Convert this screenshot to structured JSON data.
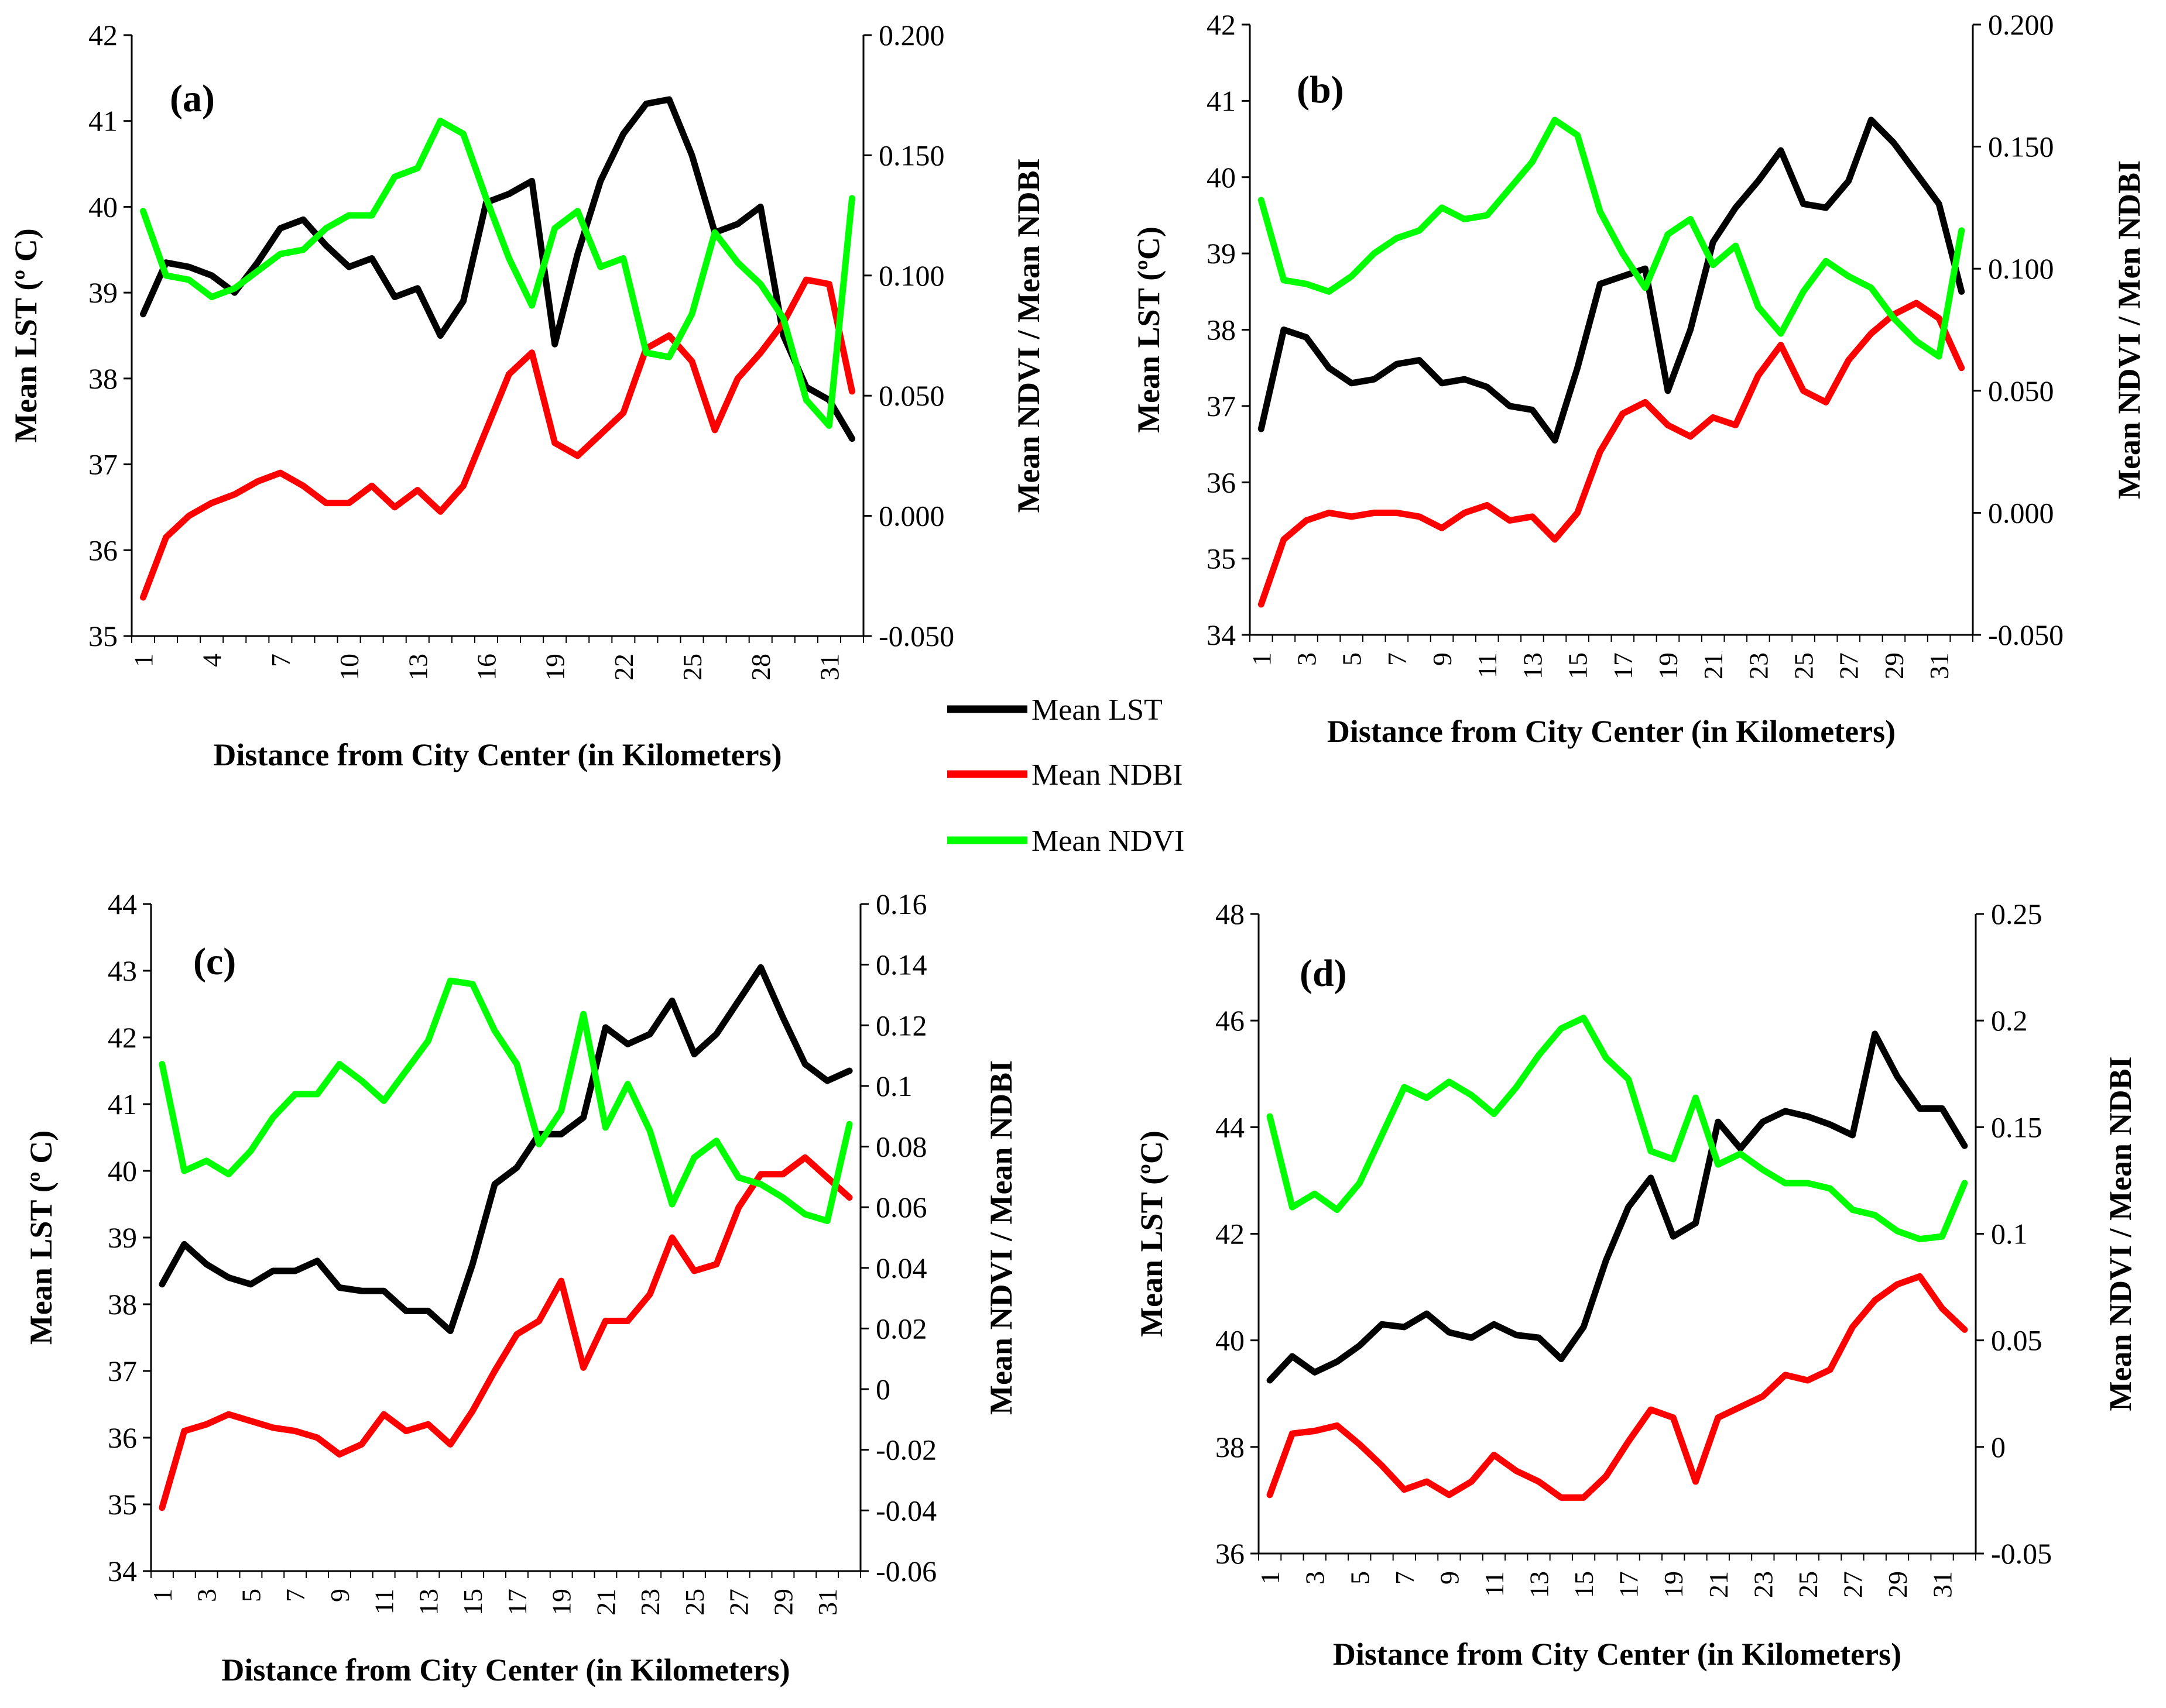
{
  "legend": [
    {
      "key": "lst",
      "label": "Mean LST",
      "color": "#000000"
    },
    {
      "key": "ndbi",
      "label": "Mean NDBI",
      "color": "#ff0000"
    },
    {
      "key": "ndvi",
      "label": "Mean NDVI",
      "color": "#00ff00"
    }
  ],
  "chart_data": [
    {
      "type": "line",
      "panel": "(a)",
      "xlabel": "Distance from City Center (in Kilometers)",
      "ylabel_left": "Mean LST (º C)",
      "ylabel_right": "Mean NDVI / Mean NDBI",
      "x": [
        1,
        2,
        3,
        4,
        5,
        6,
        7,
        8,
        9,
        10,
        11,
        12,
        13,
        14,
        15,
        16,
        17,
        18,
        19,
        20,
        21,
        22,
        23,
        24,
        25,
        26,
        27,
        28,
        29,
        30,
        31,
        32
      ],
      "x_tick_labels": [
        "1",
        "4",
        "7",
        "10",
        "13",
        "16",
        "19",
        "22",
        "25",
        "28",
        "31"
      ],
      "ylim_left": [
        35,
        42
      ],
      "yticks_left": [
        "35",
        "36",
        "37",
        "38",
        "39",
        "40",
        "41",
        "42"
      ],
      "ylim_right": [
        -0.05,
        0.2
      ],
      "yticks_right": [
        "-0.050",
        "0.000",
        "0.050",
        "0.100",
        "0.150",
        "0.200"
      ],
      "series": [
        {
          "name": "Mean LST",
          "axis": "left",
          "values": [
            38.75,
            39.35,
            39.3,
            39.2,
            39.0,
            39.35,
            39.75,
            39.85,
            39.55,
            39.3,
            39.4,
            38.95,
            39.05,
            38.5,
            38.9,
            40.05,
            40.15,
            40.3,
            38.4,
            39.45,
            40.3,
            40.85,
            41.2,
            41.25,
            40.6,
            39.7,
            39.8,
            40.0,
            38.5,
            37.9,
            37.75,
            37.3
          ]
        },
        {
          "name": "Mean NDBI",
          "axis": "left",
          "values": [
            35.45,
            36.15,
            36.4,
            36.55,
            36.65,
            36.8,
            36.9,
            36.75,
            36.55,
            36.55,
            36.75,
            36.5,
            36.7,
            36.45,
            36.75,
            37.4,
            38.05,
            38.3,
            37.25,
            37.1,
            37.35,
            37.6,
            38.35,
            38.5,
            38.2,
            37.4,
            38.0,
            38.3,
            38.65,
            39.15,
            39.1,
            37.85
          ]
        },
        {
          "name": "Mean NDVI",
          "axis": "left",
          "values": [
            39.95,
            39.2,
            39.15,
            38.95,
            39.05,
            39.25,
            39.45,
            39.5,
            39.75,
            39.9,
            39.9,
            40.35,
            40.45,
            41.0,
            40.85,
            40.1,
            39.4,
            38.85,
            39.75,
            39.95,
            39.3,
            39.4,
            38.3,
            38.25,
            38.75,
            39.7,
            39.35,
            39.1,
            38.7,
            37.75,
            37.45,
            40.1
          ]
        }
      ]
    },
    {
      "type": "line",
      "panel": "(b)",
      "xlabel": "Distance from City Center (in Kilometers)",
      "ylabel_left": "Mean LST (ºC)",
      "ylabel_right": "Mean NDVI / Men NDBI",
      "x": [
        1,
        2,
        3,
        4,
        5,
        6,
        7,
        8,
        9,
        10,
        11,
        12,
        13,
        14,
        15,
        16,
        17,
        18,
        19,
        20,
        21,
        22,
        23,
        24,
        25,
        26,
        27,
        28,
        29,
        30,
        31,
        32
      ],
      "x_tick_labels": [
        "1",
        "3",
        "5",
        "7",
        "9",
        "11",
        "13",
        "15",
        "17",
        "19",
        "21",
        "23",
        "25",
        "27",
        "29",
        "31"
      ],
      "ylim_left": [
        34,
        42
      ],
      "yticks_left": [
        "34",
        "35",
        "36",
        "37",
        "38",
        "39",
        "40",
        "41",
        "42"
      ],
      "ylim_right": [
        -0.05,
        0.2
      ],
      "yticks_right": [
        "-0.050",
        "0.000",
        "0.050",
        "0.100",
        "0.150",
        "0.200"
      ],
      "series": [
        {
          "name": "Mean LST",
          "axis": "left",
          "values": [
            36.7,
            38.0,
            37.9,
            37.5,
            37.3,
            37.35,
            37.55,
            37.6,
            37.3,
            37.35,
            37.25,
            37.0,
            36.95,
            36.55,
            37.5,
            38.6,
            38.7,
            38.8,
            37.2,
            38.0,
            39.15,
            39.6,
            39.95,
            40.35,
            39.65,
            39.6,
            39.95,
            40.75,
            40.45,
            40.05,
            39.65,
            38.5
          ]
        },
        {
          "name": "Mean NDBI",
          "axis": "left",
          "values": [
            34.4,
            35.25,
            35.5,
            35.6,
            35.55,
            35.6,
            35.6,
            35.55,
            35.4,
            35.6,
            35.7,
            35.5,
            35.55,
            35.25,
            35.6,
            36.4,
            36.9,
            37.05,
            36.75,
            36.6,
            36.85,
            36.75,
            37.4,
            37.8,
            37.2,
            37.05,
            37.6,
            37.95,
            38.2,
            38.35,
            38.15,
            37.5
          ]
        },
        {
          "name": "Mean NDVI",
          "axis": "left",
          "values": [
            39.7,
            38.65,
            38.6,
            38.5,
            38.7,
            39.0,
            39.2,
            39.3,
            39.6,
            39.45,
            39.5,
            39.85,
            40.2,
            40.75,
            40.55,
            39.55,
            39.0,
            38.55,
            39.25,
            39.45,
            38.85,
            39.1,
            38.3,
            37.95,
            38.5,
            38.9,
            38.7,
            38.55,
            38.15,
            37.85,
            37.65,
            39.3
          ]
        }
      ]
    },
    {
      "type": "line",
      "panel": "(c)",
      "xlabel": "Distance from City Center (in Kilometers)",
      "ylabel_left": "Mean LST (º C)",
      "ylabel_right": "Mean NDVI / Mean NDBI",
      "x": [
        1,
        2,
        3,
        4,
        5,
        6,
        7,
        8,
        9,
        10,
        11,
        12,
        13,
        14,
        15,
        16,
        17,
        18,
        19,
        20,
        21,
        22,
        23,
        24,
        25,
        26,
        27,
        28,
        29,
        30,
        31,
        32
      ],
      "x_tick_labels": [
        "1",
        "3",
        "5",
        "7",
        "9",
        "11",
        "13",
        "15",
        "17",
        "19",
        "21",
        "23",
        "25",
        "27",
        "29",
        "31"
      ],
      "ylim_left": [
        34,
        44
      ],
      "yticks_left": [
        "34",
        "35",
        "36",
        "37",
        "38",
        "39",
        "40",
        "41",
        "42",
        "43",
        "44"
      ],
      "ylim_right": [
        -0.06,
        0.16
      ],
      "yticks_right": [
        "-0.06",
        "-0.04",
        "-0.02",
        "0",
        "0.02",
        "0.04",
        "0.06",
        "0.08",
        "0.1",
        "0.12",
        "0.14",
        "0.16"
      ],
      "series": [
        {
          "name": "Mean LST",
          "axis": "left",
          "values": [
            38.3,
            38.9,
            38.6,
            38.4,
            38.3,
            38.5,
            38.5,
            38.65,
            38.25,
            38.2,
            38.2,
            37.9,
            37.9,
            37.6,
            38.6,
            39.8,
            40.05,
            40.55,
            40.55,
            40.8,
            42.15,
            41.9,
            42.05,
            42.55,
            41.75,
            42.05,
            42.55,
            43.05,
            42.3,
            41.6,
            41.35,
            41.5
          ]
        },
        {
          "name": "Mean NDBI",
          "axis": "left",
          "values": [
            34.95,
            36.1,
            36.2,
            36.35,
            36.25,
            36.15,
            36.1,
            36.0,
            35.75,
            35.9,
            36.35,
            36.1,
            36.2,
            35.9,
            36.4,
            37.0,
            37.55,
            37.75,
            38.35,
            37.05,
            37.75,
            37.75,
            38.15,
            39.0,
            38.5,
            38.6,
            39.45,
            39.95,
            39.95,
            40.2,
            39.9,
            39.6
          ]
        },
        {
          "name": "Mean NDVI",
          "axis": "left",
          "values": [
            41.6,
            40.0,
            40.15,
            39.95,
            40.3,
            40.8,
            41.15,
            41.15,
            41.6,
            41.35,
            41.05,
            41.5,
            41.95,
            42.85,
            42.8,
            42.1,
            41.6,
            40.4,
            40.9,
            42.35,
            40.65,
            41.3,
            40.6,
            39.5,
            40.2,
            40.45,
            39.9,
            39.8,
            39.6,
            39.35,
            39.25,
            40.7
          ]
        }
      ]
    },
    {
      "type": "line",
      "panel": "(d)",
      "xlabel": "Distance from City Center (in Kilometers)",
      "ylabel_left": "Mean LST (ºC)",
      "ylabel_right": "Mean NDVI / Mean NDBI",
      "x": [
        1,
        2,
        3,
        4,
        5,
        6,
        7,
        8,
        9,
        10,
        11,
        12,
        13,
        14,
        15,
        16,
        17,
        18,
        19,
        20,
        21,
        22,
        23,
        24,
        25,
        26,
        27,
        28,
        29,
        30,
        31,
        32
      ],
      "x_tick_labels": [
        "1",
        "3",
        "5",
        "7",
        "9",
        "11",
        "13",
        "15",
        "17",
        "19",
        "21",
        "23",
        "25",
        "27",
        "29",
        "31"
      ],
      "ylim_left": [
        36,
        48
      ],
      "yticks_left": [
        "36",
        "38",
        "40",
        "42",
        "44",
        "46",
        "48"
      ],
      "ylim_right": [
        -0.05,
        0.25
      ],
      "yticks_right": [
        "-0.05",
        "0",
        "0.05",
        "0.1",
        "0.15",
        "0.2",
        "0.25"
      ],
      "series": [
        {
          "name": "Mean LST",
          "axis": "left",
          "values": [
            39.25,
            39.7,
            39.4,
            39.6,
            39.9,
            40.3,
            40.25,
            40.5,
            40.15,
            40.05,
            40.3,
            40.1,
            40.05,
            39.65,
            40.25,
            41.5,
            42.5,
            43.05,
            41.95,
            42.2,
            44.1,
            43.6,
            44.1,
            44.3,
            44.2,
            44.05,
            43.85,
            45.75,
            44.95,
            44.35,
            44.35,
            43.65
          ]
        },
        {
          "name": "Mean NDBI",
          "axis": "left",
          "values": [
            37.1,
            38.25,
            38.3,
            38.4,
            38.05,
            37.65,
            37.2,
            37.35,
            37.1,
            37.35,
            37.85,
            37.55,
            37.35,
            37.05,
            37.05,
            37.45,
            38.1,
            38.7,
            38.55,
            37.35,
            38.55,
            38.75,
            38.95,
            39.35,
            39.25,
            39.45,
            40.25,
            40.75,
            41.05,
            41.2,
            40.6,
            40.2
          ]
        },
        {
          "name": "Mean NDVI",
          "axis": "left",
          "values": [
            44.2,
            42.5,
            42.75,
            42.45,
            42.95,
            43.85,
            44.75,
            44.55,
            44.85,
            44.6,
            44.25,
            44.75,
            45.35,
            45.85,
            46.05,
            45.3,
            44.9,
            43.55,
            43.4,
            44.55,
            43.3,
            43.5,
            43.2,
            42.95,
            42.95,
            42.85,
            42.45,
            42.35,
            42.05,
            41.9,
            41.95,
            42.95
          ]
        }
      ]
    }
  ]
}
